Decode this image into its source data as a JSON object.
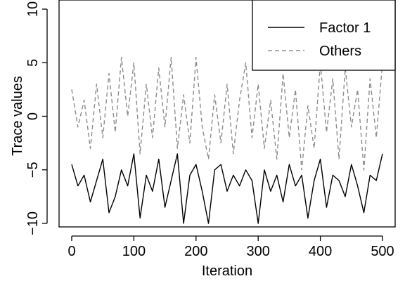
{
  "chart_data": {
    "type": "line",
    "title": "",
    "xlabel": "Iteration",
    "ylabel": "Trace values",
    "xlim": [
      0,
      500
    ],
    "ylim": [
      -10,
      10
    ],
    "x_ticks": [
      0,
      100,
      200,
      300,
      400,
      500
    ],
    "y_ticks": [
      -10,
      -5,
      0,
      5,
      10
    ],
    "x_tick_labels": [
      "0",
      "100",
      "200",
      "300",
      "400",
      "500"
    ],
    "y_tick_labels": [
      "−10",
      "−5",
      "0",
      "5",
      "10"
    ],
    "grid": false,
    "legend_position": "top-right",
    "legend": [
      {
        "label": "Factor 1",
        "color": "#000000",
        "dash": "solid"
      },
      {
        "label": "Others",
        "color": "#8c8c8c",
        "dash": "dashed"
      }
    ],
    "series": [
      {
        "name": "Factor 1",
        "color": "#000000",
        "dash": "solid",
        "x": [
          0,
          10,
          20,
          30,
          40,
          50,
          60,
          70,
          80,
          90,
          100,
          110,
          120,
          130,
          140,
          150,
          160,
          170,
          180,
          190,
          200,
          210,
          220,
          230,
          240,
          250,
          260,
          270,
          280,
          290,
          300,
          310,
          320,
          330,
          340,
          350,
          360,
          370,
          380,
          390,
          400,
          410,
          420,
          430,
          440,
          450,
          460,
          470,
          480,
          490,
          500
        ],
        "values": [
          -4.5,
          -6.5,
          -5.5,
          -8.0,
          -6.0,
          -4.0,
          -9.0,
          -7.5,
          -5.0,
          -6.5,
          -3.5,
          -9.5,
          -5.5,
          -7.0,
          -4.0,
          -8.5,
          -6.0,
          -3.5,
          -10.0,
          -5.5,
          -4.5,
          -7.0,
          -10.0,
          -5.0,
          -4.5,
          -7.0,
          -5.5,
          -6.5,
          -5.0,
          -6.0,
          -10.0,
          -5.0,
          -7.0,
          -5.5,
          -8.0,
          -4.5,
          -6.5,
          -5.5,
          -9.5,
          -6.0,
          -4.0,
          -8.5,
          -5.5,
          -6.0,
          -7.5,
          -4.5,
          -6.5,
          -9.0,
          -5.5,
          -6.0,
          -3.5
        ]
      },
      {
        "name": "Others",
        "color": "#8c8c8c",
        "dash": "dashed",
        "x": [
          0,
          10,
          20,
          30,
          40,
          50,
          60,
          70,
          80,
          90,
          100,
          110,
          120,
          130,
          140,
          150,
          160,
          170,
          180,
          190,
          200,
          210,
          220,
          230,
          240,
          250,
          260,
          270,
          280,
          290,
          300,
          310,
          320,
          330,
          340,
          350,
          360,
          370,
          380,
          390,
          400,
          410,
          420,
          430,
          440,
          450,
          460,
          470,
          480,
          490,
          500
        ],
        "values": [
          2.5,
          -1.0,
          1.5,
          -3.0,
          3.0,
          -2.0,
          4.0,
          -1.5,
          5.5,
          0.0,
          5.0,
          -3.5,
          3.0,
          -2.0,
          4.5,
          -1.0,
          5.5,
          -3.0,
          2.0,
          -2.5,
          5.5,
          -1.0,
          -4.0,
          2.0,
          -2.5,
          3.0,
          -3.5,
          1.5,
          5.0,
          -2.0,
          3.0,
          -3.0,
          1.5,
          -4.0,
          4.0,
          -2.0,
          2.5,
          -5.0,
          1.0,
          -3.0,
          5.0,
          -1.5,
          3.5,
          -4.0,
          4.5,
          -1.0,
          2.5,
          -5.0,
          3.5,
          -2.0,
          5.0
        ]
      }
    ]
  }
}
